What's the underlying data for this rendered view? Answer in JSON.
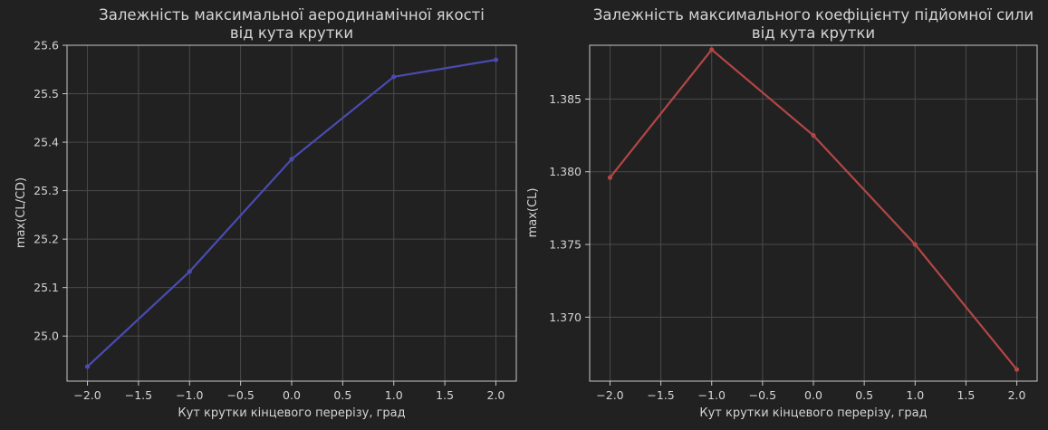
{
  "chart_data": [
    {
      "type": "line",
      "title": [
        "Залежність максимальної аеродинамічної якості",
        "від кута крутки"
      ],
      "xlabel": "Кут крутки кінцевого перерізу, град",
      "ylabel": "max(CL/CD)",
      "x": [
        -2.0,
        -1.0,
        0.0,
        1.0,
        2.0
      ],
      "series": [
        {
          "values": [
            24.937,
            25.133,
            25.365,
            25.535,
            25.57
          ],
          "color": "#4b4bb3"
        }
      ],
      "xticks": [
        -2.0,
        -1.5,
        -1.0,
        -0.5,
        0.0,
        0.5,
        1.0,
        1.5,
        2.0
      ],
      "xtick_labels": [
        "−2.0",
        "−1.5",
        "−1.0",
        "−0.5",
        "0.0",
        "0.5",
        "1.0",
        "1.5",
        "2.0"
      ],
      "yticks": [
        25.0,
        25.1,
        25.2,
        25.3,
        25.4,
        25.5,
        25.6
      ],
      "ytick_labels": [
        "25.0",
        "25.1",
        "25.2",
        "25.3",
        "25.4",
        "25.5",
        "25.6"
      ],
      "xlim": [
        -2.2,
        2.2
      ],
      "ylim": [
        24.907,
        25.6
      ],
      "grid": true
    },
    {
      "type": "line",
      "title": [
        "Залежність максимального коефіцієнту підйомної сили",
        "від кута крутки"
      ],
      "xlabel": "Кут крутки кінцевого перерізу, град",
      "ylabel": "max(CL)",
      "x": [
        -2.0,
        -1.0,
        0.0,
        1.0,
        2.0
      ],
      "series": [
        {
          "values": [
            1.3796,
            1.3884,
            1.3825,
            1.375,
            1.3664
          ],
          "color": "#b34646"
        }
      ],
      "xticks": [
        -2.0,
        -1.5,
        -1.0,
        -0.5,
        0.0,
        0.5,
        1.0,
        1.5,
        2.0
      ],
      "xtick_labels": [
        "−2.0",
        "−1.5",
        "−1.0",
        "−0.5",
        "0.0",
        "0.5",
        "1.0",
        "1.5",
        "2.0"
      ],
      "yticks": [
        1.37,
        1.375,
        1.38,
        1.385
      ],
      "ytick_labels": [
        "1.370",
        "1.375",
        "1.380",
        "1.385"
      ],
      "xlim": [
        -2.2,
        2.2
      ],
      "ylim": [
        1.3656,
        1.3887
      ],
      "grid": true
    }
  ]
}
